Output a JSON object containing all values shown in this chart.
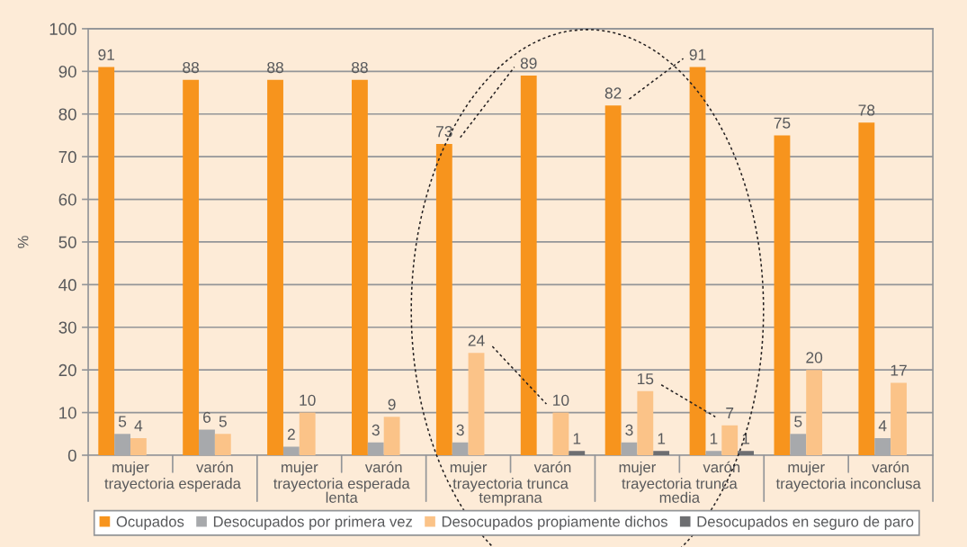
{
  "chart_data": {
    "type": "bar",
    "categories": [
      "mujer",
      "varón",
      "mujer",
      "varón",
      "mujer",
      "varón",
      "mujer",
      "varón",
      "mujer",
      "varón"
    ],
    "series": [
      {
        "name": "Ocupados",
        "color": "#f7941d",
        "values": [
          91,
          88,
          88,
          88,
          73,
          89,
          82,
          91,
          75,
          78
        ]
      },
      {
        "name": "Desocupados por primera vez",
        "color": "#a7a9ac",
        "values": [
          5,
          6,
          2,
          3,
          3,
          null,
          3,
          1,
          5,
          4
        ]
      },
      {
        "name": "Desocupados propiamente dichos",
        "color": "#fbc388",
        "values": [
          4,
          5,
          10,
          9,
          24,
          10,
          15,
          7,
          20,
          17
        ]
      },
      {
        "name": "Desocupados en seguro de paro",
        "color": "#6d6e71",
        "values": [
          null,
          null,
          null,
          null,
          null,
          1,
          1,
          1,
          null,
          null
        ]
      }
    ],
    "ylabel": "%",
    "ylim": [
      0,
      100
    ],
    "yticks": [
      0,
      10,
      20,
      30,
      40,
      50,
      60,
      70,
      80,
      90,
      100
    ],
    "annotations": [
      "trayectoria esperada",
      "trayectoria esperada\nlenta",
      "trayectoria trunca\ntemprana",
      "trayectoria trunca\nmedia",
      "trayectoria inconclusa"
    ],
    "data_labels": true,
    "grid": "y",
    "legend": "bottom"
  }
}
